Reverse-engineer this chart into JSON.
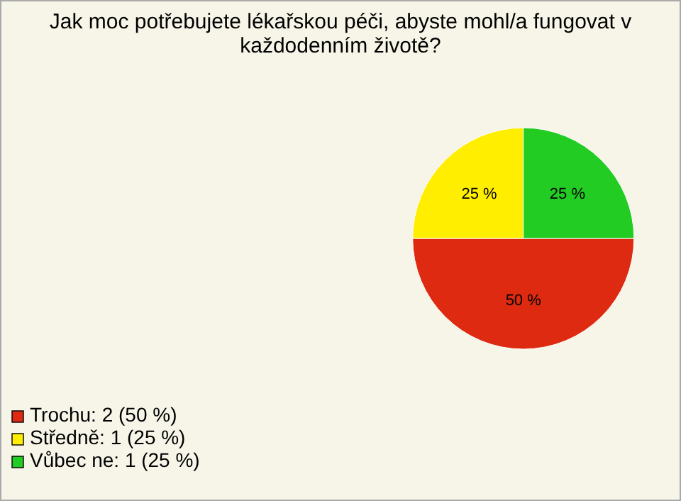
{
  "chart_data": {
    "type": "pie",
    "title": "Jak moc potřebujete lékařskou péči, abyste mohl/a fungovat v každodenním životě?",
    "categories": [
      "Trochu: 2 (50 %)",
      "Středně: 1 (25 %)",
      "Vůbec ne: 1 (25 %)"
    ],
    "values": [
      50,
      25,
      25
    ],
    "value_labels": [
      "50 %",
      "25 %",
      "25 %"
    ],
    "colors": [
      "#dd2a10",
      "#ffee00",
      "#22cc22"
    ],
    "legend": "bottom left"
  }
}
